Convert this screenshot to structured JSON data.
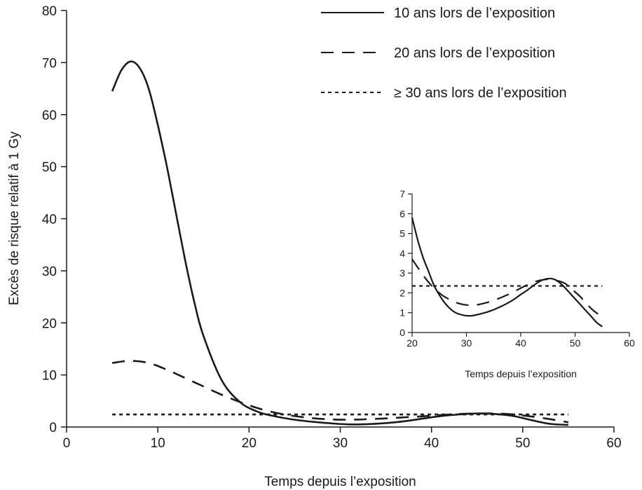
{
  "chart_data": [
    {
      "type": "line",
      "panel": "main",
      "xlabel": "Temps depuis l’exposition",
      "ylabel": "Excès de risque relatif à 1 Gy",
      "xlim": [
        0,
        60
      ],
      "ylim": [
        0,
        80
      ],
      "xticks": [
        "0",
        "10",
        "20",
        "30",
        "40",
        "50",
        "60"
      ],
      "yticks": [
        "0",
        "10",
        "20",
        "30",
        "40",
        "50",
        "60",
        "70",
        "80"
      ],
      "grid": false,
      "legend_position": "top-right",
      "series": [
        {
          "name": "10 ans lors de l’exposition",
          "style": "solid",
          "x": [
            5,
            6,
            7,
            8,
            9,
            10,
            11,
            12,
            13,
            14,
            15,
            17,
            19,
            21,
            23,
            25,
            27,
            29,
            31,
            33,
            35,
            37,
            39,
            41,
            43,
            45,
            47,
            49,
            51,
            53,
            55
          ],
          "y": [
            64.5,
            68.5,
            70.2,
            69,
            65,
            58,
            50,
            41,
            32,
            24,
            17.5,
            9,
            4.8,
            2.9,
            2,
            1.4,
            1,
            0.7,
            0.5,
            0.55,
            0.75,
            1.1,
            1.6,
            2.1,
            2.4,
            2.6,
            2.5,
            2.1,
            1.3,
            0.6,
            0.4
          ]
        },
        {
          "name": "20 ans lors de l’exposition",
          "style": "dashed",
          "x": [
            5,
            7,
            9,
            11,
            13,
            15,
            17,
            19,
            21,
            23,
            25,
            27,
            29,
            31,
            33,
            35,
            37,
            39,
            41,
            43,
            45,
            47,
            49,
            51,
            53,
            55
          ],
          "y": [
            12.3,
            12.7,
            12.3,
            11,
            9.4,
            7.8,
            6.2,
            4.8,
            3.6,
            2.7,
            2.1,
            1.7,
            1.45,
            1.4,
            1.5,
            1.65,
            1.85,
            2.05,
            2.3,
            2.5,
            2.6,
            2.6,
            2.4,
            2,
            1.5,
            0.9
          ]
        },
        {
          "name": "≥ 30 ans lors de l’exposition",
          "style": "dotted",
          "x": [
            5,
            55
          ],
          "y": [
            2.4,
            2.4
          ]
        }
      ]
    },
    {
      "type": "line",
      "panel": "inset",
      "xlabel": "Temps depuis l’exposition",
      "ylabel": "",
      "xlim": [
        20,
        60
      ],
      "ylim": [
        0,
        7
      ],
      "xticks": [
        "20",
        "30",
        "40",
        "50",
        "60"
      ],
      "yticks": [
        "0",
        "1",
        "2",
        "3",
        "4",
        "5",
        "6",
        "7"
      ],
      "grid": false,
      "series": [
        {
          "style": "solid",
          "x": [
            20,
            21,
            22,
            23,
            24,
            25,
            26,
            27,
            28,
            29,
            30,
            31,
            32,
            33,
            34,
            35,
            36,
            37,
            38,
            39,
            40,
            41,
            42,
            43,
            44,
            45,
            46,
            47,
            48,
            49,
            50,
            51,
            52,
            53,
            54,
            55
          ],
          "y": [
            5.8,
            4.7,
            3.8,
            3.1,
            2.4,
            1.9,
            1.5,
            1.2,
            1,
            0.9,
            0.85,
            0.85,
            0.9,
            0.97,
            1.05,
            1.15,
            1.27,
            1.4,
            1.55,
            1.72,
            1.92,
            2.1,
            2.3,
            2.5,
            2.65,
            2.72,
            2.7,
            2.55,
            2.3,
            2,
            1.7,
            1.4,
            1.1,
            0.8,
            0.5,
            0.3
          ]
        },
        {
          "style": "dashed",
          "x": [
            20,
            21,
            22,
            23,
            24,
            25,
            26,
            27,
            28,
            29,
            30,
            31,
            32,
            33,
            34,
            35,
            36,
            37,
            38,
            39,
            40,
            41,
            42,
            43,
            44,
            45,
            46,
            47,
            48,
            49,
            50,
            51,
            52,
            53,
            54,
            55
          ],
          "y": [
            3.7,
            3.3,
            2.9,
            2.55,
            2.25,
            2,
            1.8,
            1.65,
            1.52,
            1.44,
            1.39,
            1.38,
            1.4,
            1.46,
            1.53,
            1.62,
            1.72,
            1.84,
            1.96,
            2.1,
            2.24,
            2.38,
            2.5,
            2.6,
            2.66,
            2.68,
            2.66,
            2.6,
            2.5,
            2.3,
            2.05,
            1.8,
            1.5,
            1.2,
            0.98,
            0.85
          ]
        },
        {
          "style": "dotted",
          "x": [
            20,
            55
          ],
          "y": [
            2.35,
            2.35
          ]
        }
      ]
    }
  ]
}
